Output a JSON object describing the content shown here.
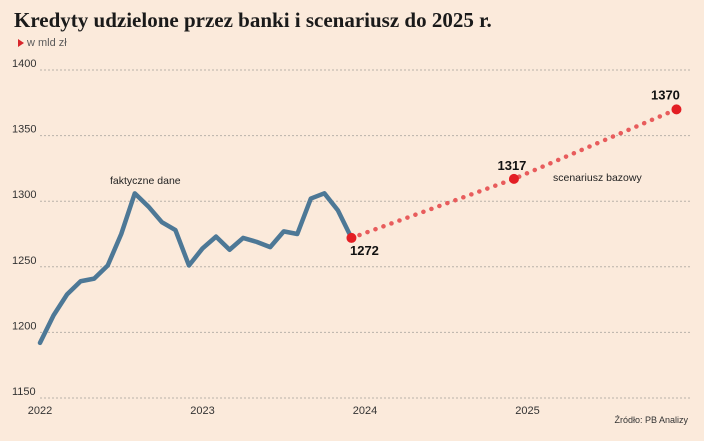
{
  "title": "Kredyty udzielone przez banki i scenariusz do 2025 r.",
  "subtitle": "w mld zł",
  "source": "Źródło: PB Analizy",
  "colors": {
    "background": "#fbeadb",
    "actual_line": "#4d7896",
    "scenario": "#e85c5c",
    "marker": "#e31e24",
    "grid": "#b9b2aa"
  },
  "chart_data": {
    "type": "line",
    "title": "Kredyty udzielone przez banki i scenariusz do 2025 r.",
    "ylabel": "w mld zł",
    "ylim": [
      1150,
      1400
    ],
    "yticks": [
      1400,
      1350,
      1300,
      1250,
      1200,
      1150
    ],
    "xlim": [
      "2022-01",
      "2026-01"
    ],
    "xticks": [
      "2022",
      "2023",
      "2024",
      "2025"
    ],
    "grid": true,
    "series": [
      {
        "name": "faktyczne dane",
        "style": "solid",
        "points": [
          {
            "x": "2022-01",
            "y": 1192
          },
          {
            "x": "2022-02",
            "y": 1213
          },
          {
            "x": "2022-03",
            "y": 1229
          },
          {
            "x": "2022-04",
            "y": 1239
          },
          {
            "x": "2022-05",
            "y": 1241
          },
          {
            "x": "2022-06",
            "y": 1251
          },
          {
            "x": "2022-07",
            "y": 1275
          },
          {
            "x": "2022-08",
            "y": 1306
          },
          {
            "x": "2022-09",
            "y": 1296
          },
          {
            "x": "2022-10",
            "y": 1284
          },
          {
            "x": "2022-11",
            "y": 1278
          },
          {
            "x": "2022-12",
            "y": 1251
          },
          {
            "x": "2023-01",
            "y": 1264
          },
          {
            "x": "2023-02",
            "y": 1273
          },
          {
            "x": "2023-03",
            "y": 1263
          },
          {
            "x": "2023-04",
            "y": 1272
          },
          {
            "x": "2023-05",
            "y": 1269
          },
          {
            "x": "2023-06",
            "y": 1265
          },
          {
            "x": "2023-07",
            "y": 1277
          },
          {
            "x": "2023-08",
            "y": 1275
          },
          {
            "x": "2023-09",
            "y": 1302
          },
          {
            "x": "2023-10",
            "y": 1306
          },
          {
            "x": "2023-11",
            "y": 1293
          },
          {
            "x": "2023-12",
            "y": 1272
          }
        ]
      },
      {
        "name": "scenariusz bazowy",
        "style": "dotted",
        "points": [
          {
            "x": "2023-12",
            "y": 1272
          },
          {
            "x": "2024-12",
            "y": 1317
          },
          {
            "x": "2025-12",
            "y": 1370
          }
        ]
      }
    ],
    "annotations": [
      {
        "text": "faktyczne dane",
        "series": 0
      },
      {
        "text": "scenariusz bazowy",
        "series": 1
      }
    ],
    "data_labels": [
      {
        "x": "2023-12",
        "y": 1272,
        "text": "1272"
      },
      {
        "x": "2024-12",
        "y": 1317,
        "text": "1317"
      },
      {
        "x": "2025-12",
        "y": 1370,
        "text": "1370"
      }
    ]
  }
}
